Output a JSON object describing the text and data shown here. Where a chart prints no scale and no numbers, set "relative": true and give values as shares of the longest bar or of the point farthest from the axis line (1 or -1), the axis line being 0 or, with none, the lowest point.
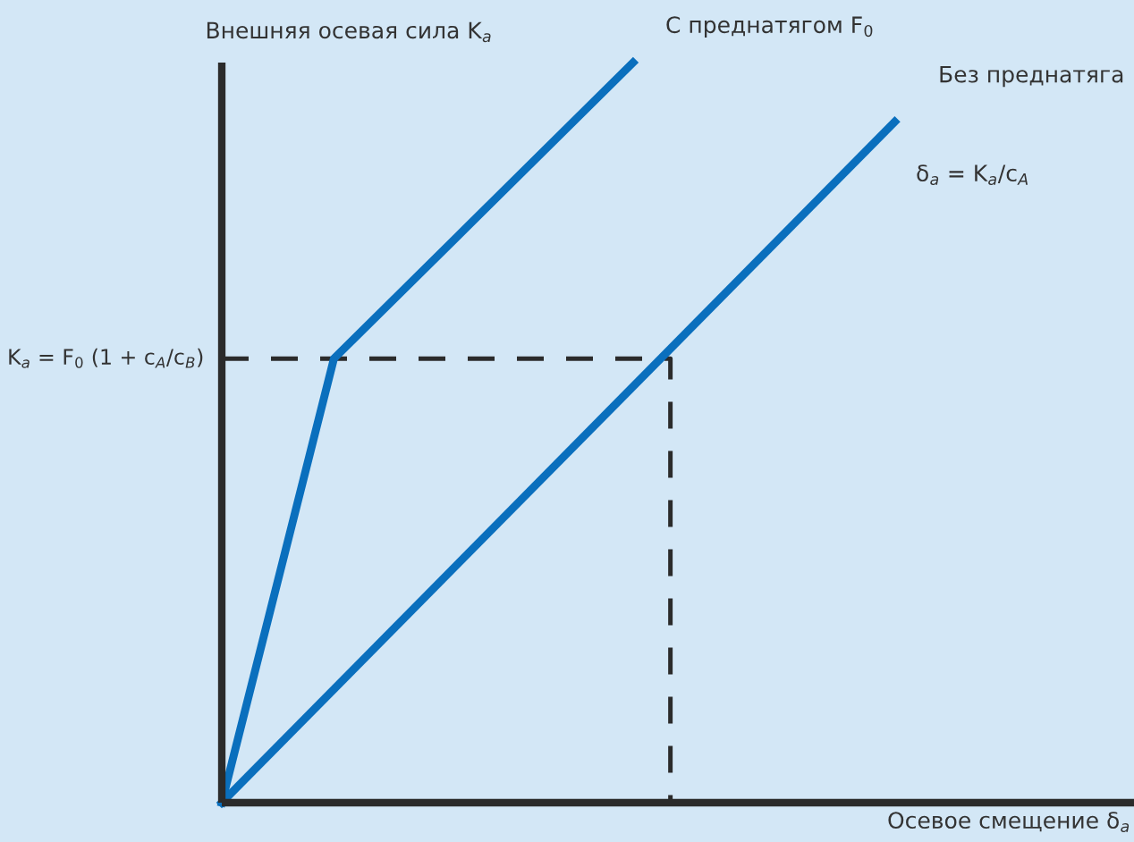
{
  "chart_data": {
    "type": "line",
    "relative": true,
    "xlabel": "Осевое смещение δ$_{a}$",
    "ylabel": "Внешняя осевая сила K$_{a}$",
    "categories": [
      null,
      null,
      null,
      null,
      null,
      null,
      null,
      null,
      null,
      null,
      null,
      null,
      null,
      null,
      null,
      null,
      null,
      null,
      null,
      null,
      null,
      null,
      null,
      null,
      null
    ],
    "series": [
      {
        "name": "С преднатягом F$_{0}$",
        "color": "#0a6fbd",
        "values": [
          0,
          null,
          null,
          0.6,
          null,
          null,
          null,
          null,
          null,
          null,
          null,
          1,
          null,
          null,
          null,
          null,
          null,
          null,
          null,
          null,
          null,
          null,
          null,
          null,
          null
        ]
      },
      {
        "name": "Без преднатяга",
        "color": "#0a6fbd",
        "values": [
          0,
          null,
          null,
          null,
          null,
          null,
          null,
          null,
          null,
          null,
          null,
          null,
          null,
          null,
          null,
          null,
          null,
          null,
          0.92,
          null,
          null,
          null,
          null,
          null,
          null
        ]
      },
      {
        "type": "step",
        "color": "#2b2b2b",
        "line_style": "dashed",
        "values": [
          0.6,
          null,
          null,
          null,
          null,
          null,
          null,
          null,
          null,
          null,
          null,
          null,
          0.6,
          0,
          null,
          null,
          null,
          null,
          null,
          null,
          null,
          null,
          null,
          null,
          null
        ]
      }
    ],
    "annotations": [
      "K$_{a}$ = F$_{0}$ (1 + c$_{A}$/c$_{B}$)",
      "δ$_{a}$ = K$_{a}$/c$_{A}$"
    ],
    "marker": "none"
  }
}
